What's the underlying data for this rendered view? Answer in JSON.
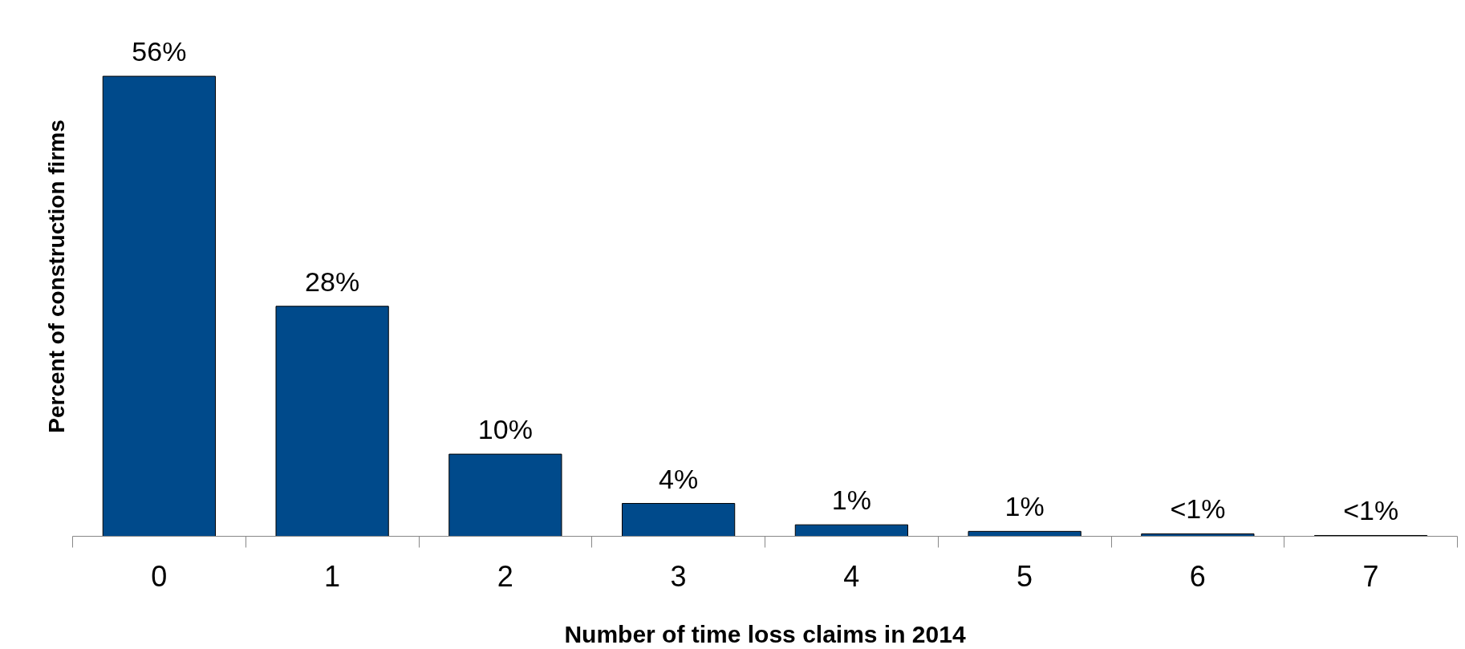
{
  "chart_data": {
    "type": "bar",
    "xlabel": "Number of time loss claims in 2014",
    "ylabel": "Percent of construction firms",
    "categories": [
      "0",
      "1",
      "2",
      "3",
      "4",
      "5",
      "6",
      "7"
    ],
    "values": [
      56,
      28,
      10,
      4,
      1.4,
      0.6,
      0.3,
      0.1
    ],
    "value_labels": [
      "56%",
      "28%",
      "10%",
      "4%",
      "1%",
      "1%",
      "<1%",
      "<1%"
    ],
    "color": "#004a8b",
    "ylim": [
      0,
      56
    ],
    "grid": false
  }
}
